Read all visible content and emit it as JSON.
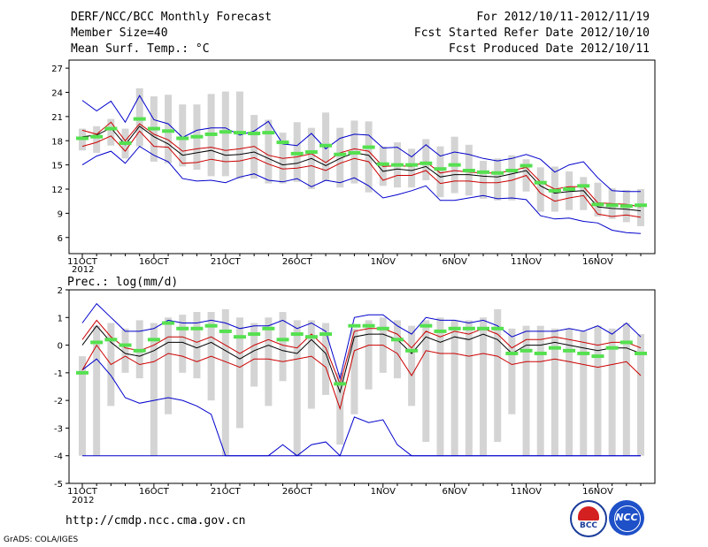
{
  "header": {
    "title": "DERF/NCC/BCC Monthly Forecast",
    "member_size": "Member Size=40",
    "variable": "Mean Surf. Temp.: °C",
    "period": "For 2012/10/11-2012/11/19",
    "started": "Fcst Started Refer Date 2012/10/10",
    "produced": "Fcst Produced Date 2012/10/11"
  },
  "footer": {
    "url": "http://cmdp.ncc.cma.gov.cn",
    "credit": "GrADS: COLA/IGES",
    "logo_left_text": "BCC",
    "logo_right_text": "NCC"
  },
  "colors": {
    "box": "#d4d4d4",
    "median": "#55e050",
    "mean": "#000000",
    "spread_inner": "#cc0000",
    "spread_outer": "#0000cc"
  },
  "chart_data": [
    {
      "type": "line",
      "title": "Mean Surf. Temp.: °C",
      "xlabel": "",
      "ylabel": "",
      "x": [
        "10-11",
        "10-12",
        "10-13",
        "10-14",
        "10-15",
        "10-16",
        "10-17",
        "10-18",
        "10-19",
        "10-20",
        "10-21",
        "10-22",
        "10-23",
        "10-24",
        "10-25",
        "10-26",
        "10-27",
        "10-28",
        "10-29",
        "10-30",
        "10-31",
        "11-01",
        "11-02",
        "11-03",
        "11-04",
        "11-05",
        "11-06",
        "11-07",
        "11-08",
        "11-09",
        "11-10",
        "11-11",
        "11-12",
        "11-13",
        "11-14",
        "11-15",
        "11-16",
        "11-17",
        "11-18",
        "11-19"
      ],
      "tick_labels": [
        "11OCT",
        "16OCT",
        "21OCT",
        "26OCT",
        "1NOV",
        "6NOV",
        "11NOV",
        "16NOV"
      ],
      "tick_index": [
        0,
        5,
        10,
        15,
        21,
        26,
        31,
        36
      ],
      "year_label": "2012",
      "ylim": [
        4,
        28
      ],
      "yticks": [
        6,
        9,
        12,
        15,
        18,
        21,
        24,
        27
      ],
      "series": [
        {
          "name": "box_top",
          "values": [
            19.5,
            19.8,
            20.7,
            19.5,
            24.5,
            23.5,
            23.7,
            22.5,
            22.5,
            23.8,
            24.1,
            24.1,
            21.2,
            20.6,
            19.0,
            20.3,
            19.6,
            21.5,
            19.6,
            20.5,
            20.4,
            17.3,
            17.8,
            17.0,
            18.2,
            17.3,
            18.5,
            17.5,
            15.5,
            15.8,
            16.2,
            15.7,
            14.7,
            14.8,
            14.2,
            13.5,
            12.8,
            12.1,
            11.9,
            12.0
          ]
        },
        {
          "name": "box_bottom",
          "values": [
            16.8,
            16.5,
            17.4,
            15.8,
            17.3,
            15.4,
            15.2,
            14.8,
            14.4,
            13.6,
            13.6,
            13.3,
            13.3,
            12.7,
            12.7,
            12.9,
            12.0,
            13.0,
            12.2,
            12.7,
            11.6,
            12.4,
            12.2,
            12.2,
            13.1,
            11.0,
            11.5,
            11.2,
            10.8,
            10.6,
            10.6,
            11.7,
            9.2,
            9.2,
            9.4,
            9.4,
            8.6,
            8.3,
            7.9,
            7.4
          ]
        },
        {
          "name": "median",
          "values": [
            18.3,
            18.5,
            19.5,
            17.7,
            20.7,
            19.5,
            19.2,
            18.3,
            18.5,
            18.8,
            19.1,
            19.0,
            18.9,
            19.0,
            17.8,
            16.4,
            16.6,
            17.4,
            16.3,
            16.5,
            17.2,
            15.1,
            15.0,
            15.0,
            15.2,
            14.5,
            15.0,
            14.3,
            14.1,
            14.0,
            14.3,
            14.9,
            12.8,
            11.8,
            12.0,
            12.4,
            10.1,
            10.0,
            9.9,
            10.0
          ]
        },
        {
          "name": "mean",
          "values": [
            18.5,
            18.7,
            19.6,
            17.5,
            19.8,
            18.5,
            17.6,
            16.2,
            16.5,
            16.8,
            16.2,
            16.3,
            16.6,
            15.8,
            15.0,
            15.2,
            15.8,
            14.9,
            15.8,
            16.5,
            16.2,
            14.2,
            14.5,
            14.3,
            14.8,
            13.5,
            13.8,
            13.8,
            13.6,
            13.5,
            13.9,
            14.3,
            12.4,
            11.5,
            11.7,
            11.8,
            9.8,
            9.6,
            9.5,
            9.3
          ]
        },
        {
          "name": "inner_upper",
          "values": [
            19.3,
            18.8,
            20.3,
            18.0,
            20.1,
            18.8,
            18.1,
            16.7,
            17.0,
            17.2,
            16.8,
            17.0,
            17.3,
            16.2,
            15.8,
            16.0,
            16.4,
            15.3,
            16.5,
            17.0,
            16.7,
            14.8,
            14.9,
            14.8,
            15.4,
            14.0,
            14.3,
            14.1,
            14.0,
            14.0,
            14.3,
            14.7,
            12.9,
            12.0,
            12.3,
            12.3,
            10.3,
            10.2,
            10.1,
            9.8
          ]
        },
        {
          "name": "inner_lower",
          "values": [
            17.3,
            17.8,
            18.6,
            16.7,
            19.2,
            17.3,
            17.2,
            15.2,
            15.3,
            15.7,
            15.4,
            15.5,
            15.9,
            15.1,
            14.5,
            14.6,
            14.9,
            14.3,
            15.2,
            15.8,
            15.4,
            13.1,
            13.7,
            13.7,
            14.3,
            12.7,
            13.0,
            13.0,
            12.8,
            12.8,
            13.1,
            13.7,
            11.5,
            10.5,
            10.9,
            11.2,
            8.9,
            8.6,
            8.8,
            8.5
          ]
        },
        {
          "name": "outer_upper",
          "values": [
            23.0,
            21.7,
            22.9,
            20.3,
            23.6,
            20.6,
            20.1,
            18.4,
            19.3,
            19.6,
            19.6,
            18.7,
            19.2,
            20.4,
            17.6,
            17.4,
            18.9,
            17.0,
            18.3,
            18.8,
            18.7,
            17.1,
            17.2,
            16.0,
            17.5,
            16.1,
            16.6,
            16.3,
            15.8,
            15.5,
            15.8,
            16.3,
            15.7,
            14.1,
            15.0,
            15.4,
            13.4,
            11.8,
            11.7,
            11.7
          ]
        },
        {
          "name": "outer_lower",
          "values": [
            15.0,
            16.1,
            16.7,
            15.2,
            17.3,
            16.2,
            15.4,
            13.3,
            13.0,
            13.1,
            12.8,
            13.5,
            13.9,
            13.1,
            12.9,
            13.3,
            12.3,
            13.1,
            12.8,
            13.4,
            12.4,
            10.9,
            11.3,
            11.8,
            12.4,
            10.6,
            10.6,
            10.9,
            11.2,
            10.8,
            10.9,
            10.7,
            8.7,
            8.3,
            8.4,
            8.0,
            7.8,
            6.9,
            6.6,
            6.5
          ]
        }
      ]
    },
    {
      "type": "line",
      "title": "Prec.: log(mm/d)",
      "xlabel": "",
      "ylabel": "",
      "x": [
        "10-11",
        "10-12",
        "10-13",
        "10-14",
        "10-15",
        "10-16",
        "10-17",
        "10-18",
        "10-19",
        "10-20",
        "10-21",
        "10-22",
        "10-23",
        "10-24",
        "10-25",
        "10-26",
        "10-27",
        "10-28",
        "10-29",
        "10-30",
        "10-31",
        "11-01",
        "11-02",
        "11-03",
        "11-04",
        "11-05",
        "11-06",
        "11-07",
        "11-08",
        "11-09",
        "11-10",
        "11-11",
        "11-12",
        "11-13",
        "11-14",
        "11-15",
        "11-16",
        "11-17",
        "11-18",
        "11-19"
      ],
      "tick_labels": [
        "11OCT",
        "16OCT",
        "21OCT",
        "26OCT",
        "1NOV",
        "6NOV",
        "11NOV",
        "16NOV"
      ],
      "tick_index": [
        0,
        5,
        10,
        15,
        21,
        26,
        31,
        36
      ],
      "year_label": "2012",
      "ylim": [
        -5,
        2
      ],
      "yticks": [
        -5,
        -4,
        -3,
        -2,
        -1,
        0,
        1,
        2
      ],
      "series": [
        {
          "name": "box_top",
          "values": [
            -0.4,
            0.7,
            0.8,
            0.6,
            0.9,
            0.8,
            1.0,
            1.1,
            1.2,
            1.2,
            1.3,
            1.0,
            0.8,
            1.0,
            1.2,
            0.9,
            0.9,
            0.8,
            -1.0,
            0.6,
            0.9,
            1.0,
            0.9,
            0.7,
            0.9,
            1.0,
            0.9,
            0.9,
            1.0,
            1.3,
            0.6,
            0.7,
            0.7,
            0.6,
            0.6,
            0.5,
            0.7,
            0.6,
            0.8,
            0.4
          ]
        },
        {
          "name": "box_bottom",
          "values": [
            -4.0,
            -4.0,
            -2.2,
            -1.0,
            -1.2,
            -4.0,
            -2.5,
            -1.0,
            -1.2,
            -2.0,
            -4.0,
            -3.0,
            -1.5,
            -2.2,
            -1.3,
            -4.0,
            -2.3,
            -1.8,
            -3.6,
            -2.5,
            -1.6,
            -1.0,
            -1.2,
            -2.2,
            -3.5,
            -4.0,
            -4.0,
            -4.0,
            -4.0,
            -3.5,
            -2.5,
            -4.0,
            -4.0,
            -4.0,
            -4.0,
            -4.0,
            -4.0,
            -4.0,
            -4.0,
            -4.0
          ]
        },
        {
          "name": "median",
          "values": [
            -1.0,
            0.1,
            0.2,
            0.0,
            -0.2,
            0.2,
            0.8,
            0.6,
            0.6,
            0.7,
            0.5,
            0.3,
            0.4,
            0.6,
            0.2,
            0.4,
            0.3,
            0.4,
            -1.4,
            0.7,
            0.7,
            0.6,
            0.2,
            -0.2,
            0.7,
            0.5,
            0.6,
            0.6,
            0.6,
            0.6,
            -0.3,
            -0.2,
            -0.3,
            -0.1,
            -0.2,
            -0.3,
            -0.4,
            -0.1,
            0.1,
            -0.3
          ]
        },
        {
          "name": "mean",
          "values": [
            0.0,
            0.7,
            0.1,
            -0.3,
            -0.4,
            -0.2,
            0.1,
            0.1,
            -0.1,
            0.1,
            -0.2,
            -0.5,
            -0.2,
            0.0,
            -0.2,
            -0.3,
            0.2,
            -0.3,
            -1.7,
            0.3,
            0.4,
            0.4,
            0.2,
            -0.3,
            0.3,
            0.1,
            0.3,
            0.2,
            0.4,
            0.2,
            -0.3,
            0.0,
            0.0,
            0.1,
            0.0,
            -0.1,
            -0.2,
            -0.1,
            -0.1,
            -0.3
          ]
        },
        {
          "name": "inner_upper",
          "values": [
            0.2,
            0.9,
            0.3,
            -0.1,
            -0.2,
            0.0,
            0.3,
            0.3,
            0.1,
            0.3,
            0.0,
            -0.3,
            0.0,
            0.2,
            0.0,
            -0.1,
            0.4,
            -0.1,
            -1.4,
            0.5,
            0.6,
            0.6,
            0.4,
            -0.1,
            0.5,
            0.3,
            0.5,
            0.4,
            0.6,
            0.4,
            -0.1,
            0.2,
            0.2,
            0.3,
            0.2,
            0.1,
            0.0,
            0.1,
            0.1,
            -0.1
          ]
        },
        {
          "name": "inner_lower",
          "values": [
            -0.9,
            0.0,
            -0.7,
            -0.4,
            -0.7,
            -0.6,
            -0.3,
            -0.4,
            -0.6,
            -0.4,
            -0.6,
            -0.8,
            -0.5,
            -0.5,
            -0.6,
            -0.5,
            -0.4,
            -0.8,
            -2.3,
            -0.2,
            0.0,
            0.0,
            -0.3,
            -1.1,
            -0.2,
            -0.3,
            -0.3,
            -0.4,
            -0.3,
            -0.4,
            -0.7,
            -0.6,
            -0.6,
            -0.5,
            -0.6,
            -0.7,
            -0.8,
            -0.7,
            -0.6,
            -1.1
          ]
        },
        {
          "name": "outer_upper",
          "values": [
            0.8,
            1.5,
            1.0,
            0.5,
            0.5,
            0.6,
            0.9,
            0.8,
            0.8,
            0.9,
            0.8,
            0.6,
            0.7,
            0.7,
            0.9,
            0.6,
            0.8,
            0.5,
            -1.2,
            1.0,
            1.1,
            1.1,
            0.7,
            0.4,
            1.0,
            0.9,
            0.9,
            0.8,
            0.9,
            0.7,
            0.3,
            0.5,
            0.5,
            0.5,
            0.6,
            0.5,
            0.7,
            0.4,
            0.8,
            0.3
          ]
        },
        {
          "name": "outer_lower",
          "values": [
            -0.9,
            -0.5,
            -1.1,
            -1.9,
            -2.1,
            -2.0,
            -1.9,
            -2.0,
            -2.2,
            -2.5,
            -4.0,
            -4.0,
            -4.0,
            -4.0,
            -3.6,
            -4.0,
            -3.6,
            -3.5,
            -4.0,
            -2.6,
            -2.8,
            -2.7,
            -3.6,
            -4.0,
            -4.0,
            -4.0,
            -4.0,
            -4.0,
            -4.0,
            -4.0,
            -4.0,
            -4.0,
            -4.0,
            -4.0,
            -4.0,
            -4.0,
            -4.0,
            -4.0,
            -4.0,
            -4.0
          ]
        },
        {
          "name": "bottom_floor",
          "values": [
            -4.0,
            -4.0,
            -4.0,
            -4.0,
            -4.0,
            -4.0,
            -4.0,
            -4.0,
            -4.0,
            -4.0,
            -4.0,
            -4.0,
            -4.0,
            -4.0,
            -4.0,
            -4.0,
            -4.0,
            -4.0,
            -4.0,
            -4.0,
            -4.0,
            -4.0,
            -4.0,
            -4.0,
            -4.0,
            -4.0,
            -4.0,
            -4.0,
            -4.0,
            -4.0,
            -4.0,
            -4.0,
            -4.0,
            -4.0,
            -4.0,
            -4.0,
            -4.0,
            -4.0,
            -4.0,
            -4.0
          ]
        }
      ]
    }
  ]
}
